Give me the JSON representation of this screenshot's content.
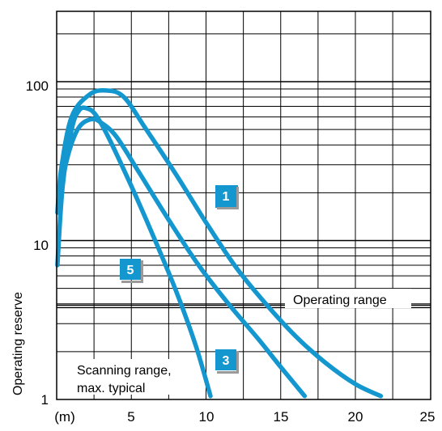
{
  "chart_data": {
    "type": "line",
    "ylabel": "Operating reserve",
    "xlabel": "",
    "x_unit_label": "(m)",
    "x_ticks": [
      "5",
      "10",
      "15",
      "20",
      "25"
    ],
    "x_tick_values": [
      5,
      10,
      15,
      20,
      25
    ],
    "y_ticks": [
      "1",
      "10",
      "100"
    ],
    "y_tick_values": [
      1,
      10,
      100
    ],
    "xlim": [
      0,
      25
    ],
    "ylim": [
      1,
      500
    ],
    "y_scale": "log",
    "grid": true,
    "series_color": "#1497cf",
    "series": [
      {
        "badge": "1",
        "points": [
          [
            0.05,
            15
          ],
          [
            0.3,
            28
          ],
          [
            1.0,
            60
          ],
          [
            2.2,
            83
          ],
          [
            3.3,
            88
          ],
          [
            4.5,
            80
          ],
          [
            6.0,
            50
          ],
          [
            8.0,
            26
          ],
          [
            10.0,
            13
          ],
          [
            12.0,
            6.8
          ],
          [
            14.0,
            4.0
          ],
          [
            16.0,
            2.5
          ],
          [
            18.0,
            1.7
          ],
          [
            20.0,
            1.25
          ],
          [
            21.7,
            1.05
          ]
        ]
      },
      {
        "badge": "3",
        "points": [
          [
            0.1,
            15
          ],
          [
            0.6,
            30
          ],
          [
            1.4,
            50
          ],
          [
            2.3,
            58
          ],
          [
            3.0,
            55
          ],
          [
            4.0,
            45
          ],
          [
            5.5,
            27
          ],
          [
            7.5,
            13.5
          ],
          [
            9.5,
            7.0
          ],
          [
            11.5,
            4.0
          ],
          [
            13.5,
            2.4
          ],
          [
            15.0,
            1.6
          ],
          [
            16.6,
            1.05
          ]
        ]
      },
      {
        "badge": "5",
        "points": [
          [
            0.05,
            7
          ],
          [
            0.4,
            22
          ],
          [
            1.0,
            50
          ],
          [
            1.5,
            66
          ],
          [
            2.0,
            68
          ],
          [
            2.6,
            62
          ],
          [
            3.5,
            44
          ],
          [
            5.0,
            22
          ],
          [
            6.5,
            10.5
          ],
          [
            8.0,
            4.8
          ],
          [
            9.3,
            2.2
          ],
          [
            10.3,
            1.05
          ]
        ]
      }
    ],
    "annotations": [
      {
        "text": "Operating range",
        "y": 3.85
      },
      {
        "lines": [
          "Scanning range,",
          "max. typical"
        ]
      }
    ],
    "badges": [
      "1",
      "3",
      "5"
    ]
  }
}
